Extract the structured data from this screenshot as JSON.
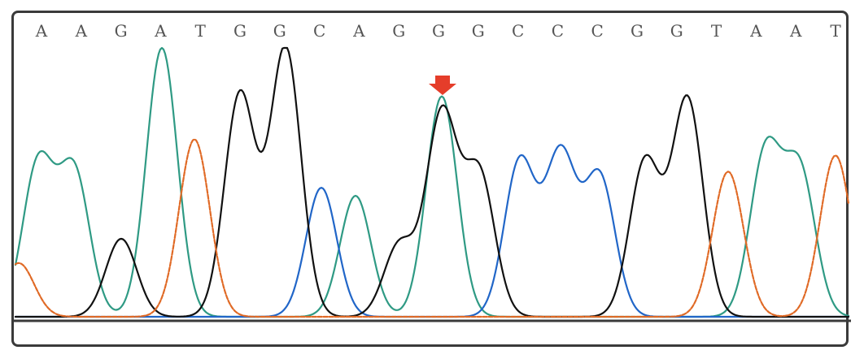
{
  "chart_data": {
    "type": "line",
    "title": "",
    "xlabel": "",
    "ylabel": "",
    "ylim": [
      0,
      100
    ],
    "bases": [
      "A",
      "A",
      "G",
      "A",
      "T",
      "G",
      "G",
      "C",
      "A",
      "G",
      "G",
      "G",
      "C",
      "C",
      "C",
      "G",
      "G",
      "T",
      "A",
      "A",
      "T"
    ],
    "colors": {
      "A": "#2f9a84",
      "C": "#2166c8",
      "G": "#111111",
      "T": "#e06a26",
      "arrow": "#e53d2a"
    },
    "marker": {
      "index": 10,
      "icon": "down-arrow-icon"
    },
    "series": [
      {
        "base": "A",
        "peaks": [
          [
            44,
            57
          ],
          [
            88,
            54
          ],
          [
            196,
            100
          ],
          [
            434,
            45
          ],
          [
            540,
            82
          ],
          [
            938,
            61
          ],
          [
            980,
            54
          ]
        ]
      },
      {
        "base": "C",
        "peaks": [
          [
            392,
            48
          ],
          [
            636,
            58
          ],
          [
            686,
            60
          ],
          [
            734,
            52
          ]
        ]
      },
      {
        "base": "G",
        "peaks": [
          [
            146,
            29
          ],
          [
            292,
            83
          ],
          [
            348,
            100
          ],
          [
            488,
            27
          ],
          [
            540,
            75
          ],
          [
            586,
            53
          ],
          [
            790,
            58
          ],
          [
            842,
            81
          ]
        ]
      },
      {
        "base": "T",
        "peaks": [
          [
            20,
            20
          ],
          [
            236,
            66
          ],
          [
            892,
            54
          ],
          [
            1024,
            60
          ]
        ]
      }
    ]
  }
}
